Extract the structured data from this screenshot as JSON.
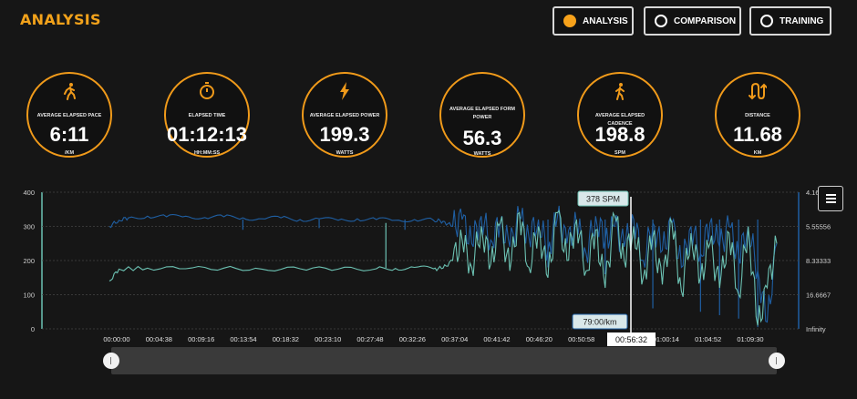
{
  "header": {
    "title": "ANALYSIS",
    "nav": [
      {
        "label": "ANALYSIS",
        "active": true
      },
      {
        "label": "COMPARISON",
        "active": false
      },
      {
        "label": "TRAINING",
        "active": false
      }
    ]
  },
  "stats": [
    {
      "icon": "running-person-icon",
      "label": "AVERAGE ELAPSED PACE",
      "value": "6:11",
      "unit": "/KM"
    },
    {
      "icon": "stopwatch-icon",
      "label": "ELAPSED TIME",
      "value": "01:12:13",
      "unit": "HH:MM:SS"
    },
    {
      "icon": "lightning-bolt-icon",
      "label": "AVERAGE ELAPSED POWER",
      "value": "199.3",
      "unit": "WATTS"
    },
    {
      "icon": "",
      "label": "AVERAGE ELAPSED FORM POWER",
      "value": "56.3",
      "unit": "WATTS"
    },
    {
      "icon": "walking-person-icon",
      "label": "AVERAGE ELAPSED CADENCE",
      "value": "198.8",
      "unit": "SPM"
    },
    {
      "icon": "route-icon",
      "label": "DISTANCE",
      "value": "11.68",
      "unit": "KM"
    }
  ],
  "colors": {
    "accent": "#f09a1a",
    "cadence_series": "#1f5fa3",
    "pace_series": "#6cc2b3",
    "timeline": "#3a3a3a"
  },
  "chart_data": {
    "type": "line",
    "x_ticks": [
      "00:00:00",
      "00:04:38",
      "00:09:16",
      "00:13:54",
      "00:18:32",
      "00:23:10",
      "00:27:48",
      "00:32:26",
      "00:37:04",
      "00:41:42",
      "00:46:20",
      "00:50:58",
      "00:55:36",
      "01:00:14",
      "01:04:52",
      "01:09:30"
    ],
    "y_left_ticks": [
      "0",
      "100",
      "200",
      "300",
      "400"
    ],
    "y_left_range": [
      0,
      400
    ],
    "y_right_ticks": [
      "Infinity",
      "16.6667",
      "8.33333",
      "5.55556",
      "4.16"
    ],
    "grid": true,
    "series": [
      {
        "color": "#1f5fa3",
        "points": [
          [
            0,
            300
          ],
          [
            1,
            318
          ],
          [
            2,
            325
          ],
          [
            4,
            330
          ],
          [
            6,
            328
          ],
          [
            8,
            330
          ],
          [
            10,
            326
          ],
          [
            12,
            328
          ],
          [
            14,
            325
          ],
          [
            16,
            322
          ],
          [
            18,
            325
          ],
          [
            20,
            320
          ],
          [
            22,
            322
          ],
          [
            24,
            318
          ],
          [
            26,
            322
          ],
          [
            28,
            320
          ],
          [
            30,
            318
          ],
          [
            32,
            320
          ],
          [
            34,
            318
          ],
          [
            35,
            315
          ],
          [
            36,
            300
          ],
          [
            37,
            320
          ],
          [
            38,
            250
          ],
          [
            39,
            330
          ],
          [
            40,
            260
          ],
          [
            41,
            310
          ],
          [
            42,
            240
          ],
          [
            43,
            330
          ],
          [
            44,
            270
          ],
          [
            45,
            320
          ],
          [
            46,
            230
          ],
          [
            47,
            330
          ],
          [
            48,
            250
          ],
          [
            49,
            310
          ],
          [
            50,
            220
          ],
          [
            51,
            330
          ],
          [
            52,
            260
          ],
          [
            53,
            300
          ],
          [
            54,
            240
          ],
          [
            55,
            320
          ],
          [
            56,
            200
          ],
          [
            57,
            310
          ],
          [
            58,
            230
          ],
          [
            59,
            310
          ],
          [
            60,
            180
          ],
          [
            61,
            300
          ],
          [
            62,
            220
          ],
          [
            63,
            310
          ],
          [
            64,
            240
          ],
          [
            65,
            300
          ],
          [
            66,
            210
          ],
          [
            67,
            300
          ],
          [
            68,
            170
          ],
          [
            69,
            20
          ],
          [
            70,
            250
          ]
        ],
        "spikes": [
          [
            14,
            290
          ],
          [
            22,
            295
          ],
          [
            31,
            290
          ],
          [
            46,
            180
          ],
          [
            52,
            160
          ],
          [
            57,
            60
          ],
          [
            62,
            50
          ],
          [
            64,
            40
          ],
          [
            66,
            30
          ],
          [
            68,
            5
          ]
        ]
      },
      {
        "color": "#6cc2b3",
        "points": [
          [
            0,
            140
          ],
          [
            1,
            175
          ],
          [
            4,
            178
          ],
          [
            8,
            176
          ],
          [
            12,
            178
          ],
          [
            16,
            175
          ],
          [
            20,
            176
          ],
          [
            24,
            175
          ],
          [
            28,
            176
          ],
          [
            30,
            177
          ],
          [
            32,
            180
          ],
          [
            34,
            176
          ],
          [
            35,
            178
          ],
          [
            36,
            200
          ],
          [
            37,
            260
          ],
          [
            38,
            180
          ],
          [
            39,
            300
          ],
          [
            40,
            190
          ],
          [
            41,
            310
          ],
          [
            42,
            170
          ],
          [
            43,
            340
          ],
          [
            44,
            180
          ],
          [
            45,
            300
          ],
          [
            46,
            150
          ],
          [
            47,
            340
          ],
          [
            48,
            200
          ],
          [
            49,
            320
          ],
          [
            50,
            170
          ],
          [
            51,
            290
          ],
          [
            52,
            120
          ],
          [
            53,
            330
          ],
          [
            54,
            200
          ],
          [
            55,
            300
          ],
          [
            56,
            150
          ],
          [
            57,
            270
          ],
          [
            58,
            130
          ],
          [
            59,
            310
          ],
          [
            60,
            110
          ],
          [
            61,
            280
          ],
          [
            62,
            150
          ],
          [
            63,
            250
          ],
          [
            64,
            120
          ],
          [
            65,
            280
          ],
          [
            66,
            100
          ],
          [
            67,
            300
          ],
          [
            68,
            10
          ],
          [
            69,
            120
          ],
          [
            70,
            250
          ]
        ],
        "spikes": [
          [
            29,
            310
          ]
        ]
      }
    ],
    "annotations": {
      "peak_label": "378 SPM",
      "pace_label": "79:00/km",
      "cursor_time": "00:56:32"
    }
  }
}
